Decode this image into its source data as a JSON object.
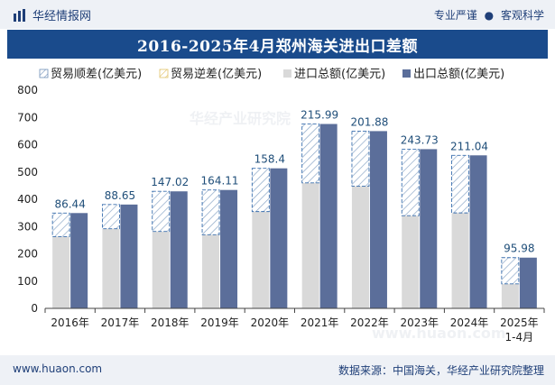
{
  "header": {
    "brand": "华经情报网",
    "tagline_left": "专业严谨",
    "tagline_right": "客观科学"
  },
  "chart_data": {
    "type": "bar",
    "title": "2016-2025年4月郑州海关进出口差额",
    "categories": [
      "2016年",
      "2017年",
      "2018年",
      "2019年",
      "2020年",
      "2021年",
      "2022年",
      "2023年",
      "2024年",
      "2025年\n1-4月"
    ],
    "series": [
      {
        "name": "贸易顺差(亿美元)",
        "values": [
          86.44,
          88.65,
          147.02,
          164.11,
          158.4,
          215.99,
          201.88,
          243.73,
          211.04,
          95.98
        ]
      },
      {
        "name": "贸易逆差(亿美元)",
        "values": [
          0,
          0,
          0,
          0,
          0,
          0,
          0,
          0,
          0,
          0
        ]
      },
      {
        "name": "进口总额(亿美元)",
        "values": [
          263,
          292,
          282,
          270,
          355,
          460,
          448,
          340,
          350,
          90
        ]
      },
      {
        "name": "出口总额(亿美元)",
        "values": [
          349.44,
          380.65,
          429.02,
          434.11,
          513.4,
          675.99,
          649.88,
          583.73,
          561.04,
          185.98
        ]
      }
    ],
    "ylim": [
      0,
      800
    ],
    "yticks": [
      0,
      100,
      200,
      300,
      400,
      500,
      600,
      700,
      800
    ],
    "xlabel": "",
    "ylabel": "",
    "colors": {
      "surplus_stroke": "#3a6fae",
      "import_fill": "#d9d9d9",
      "export_fill": "#5b6e9a",
      "label": "#1f4e79",
      "axis_text": "#222222"
    }
  },
  "watermarks": [
    "华经产业研究院",
    "www.huaon.com"
  ],
  "footer": {
    "site": "www.huaon.com",
    "source": "数据来源：中国海关，华经产业研究院整理"
  }
}
